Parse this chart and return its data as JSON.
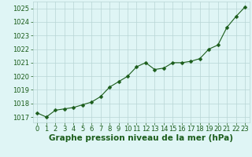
{
  "x": [
    0,
    1,
    2,
    3,
    4,
    5,
    6,
    7,
    8,
    9,
    10,
    11,
    12,
    13,
    14,
    15,
    16,
    17,
    18,
    19,
    20,
    21,
    22,
    23
  ],
  "y": [
    1017.3,
    1017.0,
    1017.5,
    1017.6,
    1017.7,
    1017.9,
    1018.1,
    1018.5,
    1019.2,
    1019.6,
    1020.0,
    1020.7,
    1021.0,
    1020.5,
    1020.6,
    1021.0,
    1021.0,
    1021.1,
    1021.3,
    1022.0,
    1022.3,
    1023.6,
    1024.4,
    1025.1
  ],
  "line_color": "#1a5c1a",
  "marker": "D",
  "marker_size": 2.5,
  "bg_color": "#dff5f5",
  "grid_color": "#b8d4d4",
  "xlabel": "Graphe pression niveau de la mer (hPa)",
  "xlabel_fontsize": 7.5,
  "xlabel_color": "#1a5c1a",
  "xlabel_bold": true,
  "yticks": [
    1017,
    1018,
    1019,
    1020,
    1021,
    1022,
    1023,
    1024,
    1025
  ],
  "xticks": [
    0,
    1,
    2,
    3,
    4,
    5,
    6,
    7,
    8,
    9,
    10,
    11,
    12,
    13,
    14,
    15,
    16,
    17,
    18,
    19,
    20,
    21,
    22,
    23
  ],
  "ylim": [
    1016.6,
    1025.5
  ],
  "xlim": [
    -0.5,
    23.5
  ],
  "tick_fontsize": 6.0,
  "tick_color": "#1a5c1a"
}
